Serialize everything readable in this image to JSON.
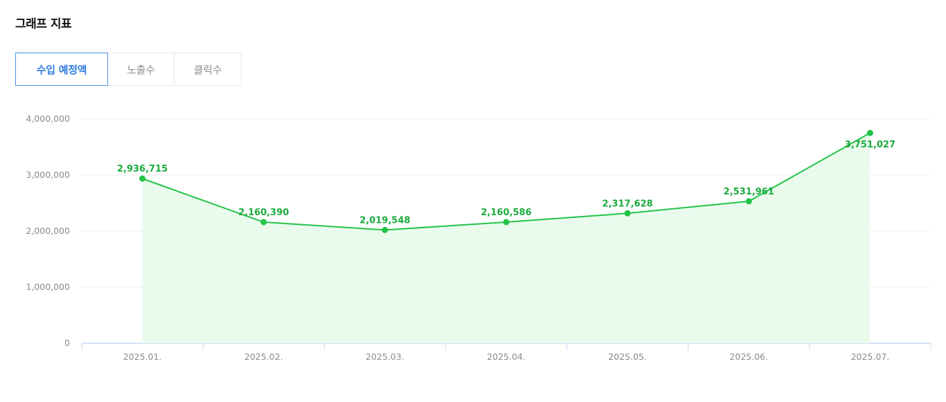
{
  "page": {
    "title": "그래프 지표"
  },
  "tabs": [
    {
      "label": "수입 예정액",
      "active": true
    },
    {
      "label": "노출수",
      "active": false
    },
    {
      "label": "클릭수",
      "active": false
    }
  ],
  "colors": {
    "line": "#22c447",
    "area": "#eafbee",
    "label": "#1aab3c",
    "active_tab": "#2f7de1"
  },
  "chart_data": {
    "type": "area",
    "categories": [
      "2025.01.",
      "2025.02.",
      "2025.03.",
      "2025.04.",
      "2025.05.",
      "2025.06.",
      "2025.07."
    ],
    "series": [
      {
        "values": [
          2936715,
          2160390,
          2019548,
          2160586,
          2317628,
          2531961,
          3751027
        ]
      }
    ],
    "data_labels": [
      "2,936,715",
      "2,160,390",
      "2,019,548",
      "2,160,586",
      "2,317,628",
      "2,531,961",
      "3,751,027"
    ],
    "y_ticks": [
      0,
      1000000,
      2000000,
      3000000,
      4000000
    ],
    "y_tick_labels": [
      "0",
      "1,000,000",
      "2,000,000",
      "3,000,000",
      "4,000,000"
    ],
    "ylim": [
      0,
      4000000
    ],
    "grid": true,
    "legend": "none"
  }
}
